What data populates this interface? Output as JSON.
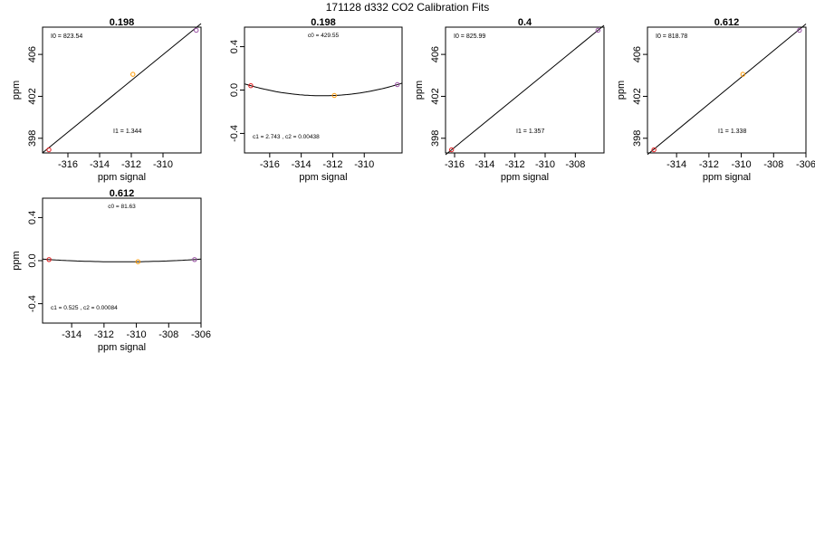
{
  "page_title": "171128   d332   CO2 Calibration Fits",
  "colors": {
    "low_point": "#e41a1c",
    "mid_point": "#ff9900",
    "high_point": "#984ea3",
    "line": "#000000"
  },
  "chart_data": [
    {
      "type": "scatter",
      "title": "0.198",
      "xlabel": "ppm signal",
      "ylabel": "ppm",
      "xlim": [
        -317.6,
        -307.6
      ],
      "ylim": [
        396.6,
        408.6
      ],
      "xticks": [
        -316,
        -314,
        -312,
        -310
      ],
      "yticks": [
        398,
        402,
        406
      ],
      "points": {
        "x": [
          -317.2,
          -311.9,
          -307.9
        ],
        "y": [
          396.9,
          404.1,
          408.3
        ]
      },
      "fit": "line",
      "annotations": [
        "I0 =  823.54",
        "I1 =  1.344"
      ]
    },
    {
      "type": "scatter",
      "title": "0.198",
      "xlabel": "ppm signal",
      "ylabel": "",
      "xlim": [
        -317.6,
        -307.6
      ],
      "ylim": [
        -0.58,
        0.58
      ],
      "xticks": [
        -316,
        -314,
        -312,
        -310
      ],
      "yticks": [
        -0.4,
        0.0,
        0.4
      ],
      "points": {
        "x": [
          -317.2,
          -311.9,
          -307.9
        ],
        "y": [
          0.04,
          -0.05,
          0.05
        ]
      },
      "fit": "quadratic",
      "annotations": [
        "c0 =  429.55",
        "c1 =  2.743  ,  c2 =  0.00438"
      ]
    },
    {
      "type": "scatter",
      "title": "0.4",
      "xlabel": "ppm signal",
      "ylabel": "ppm",
      "xlim": [
        -316.6,
        -306.1
      ],
      "ylim": [
        396.6,
        408.6
      ],
      "xticks": [
        -316,
        -314,
        -312,
        -310,
        -308
      ],
      "yticks": [
        398,
        402,
        406
      ],
      "points": {
        "x": [
          -316.2,
          -306.5
        ],
        "y": [
          396.9,
          408.3
        ]
      },
      "fit": "line",
      "annotations": [
        "I0 =  825.99",
        "I1 =  1.357"
      ]
    },
    {
      "type": "scatter",
      "title": "0.612",
      "xlabel": "ppm signal",
      "ylabel": "ppm",
      "xlim": [
        -315.8,
        -306.0
      ],
      "ylim": [
        396.6,
        408.6
      ],
      "xticks": [
        -314,
        -312,
        -310,
        -308,
        -306
      ],
      "yticks": [
        398,
        402,
        406
      ],
      "points": {
        "x": [
          -315.4,
          -309.9,
          -306.4
        ],
        "y": [
          396.9,
          404.1,
          408.3
        ]
      },
      "fit": "line",
      "annotations": [
        "I0 =  818.78",
        "I1 =  1.338"
      ]
    },
    {
      "type": "scatter",
      "title": "0.612",
      "xlabel": "ppm signal",
      "ylabel": "ppm",
      "xlim": [
        -315.8,
        -306.0
      ],
      "ylim": [
        -0.58,
        0.58
      ],
      "xticks": [
        -314,
        -312,
        -310,
        -308,
        -306
      ],
      "yticks": [
        -0.4,
        0.0,
        0.4
      ],
      "points": {
        "x": [
          -315.4,
          -309.9,
          -306.4
        ],
        "y": [
          0.01,
          -0.01,
          0.01
        ]
      },
      "fit": "quadratic",
      "annotations": [
        "c0 =  81.63",
        "c1 =  0.525  ,  c2 =  0.00084"
      ]
    }
  ]
}
